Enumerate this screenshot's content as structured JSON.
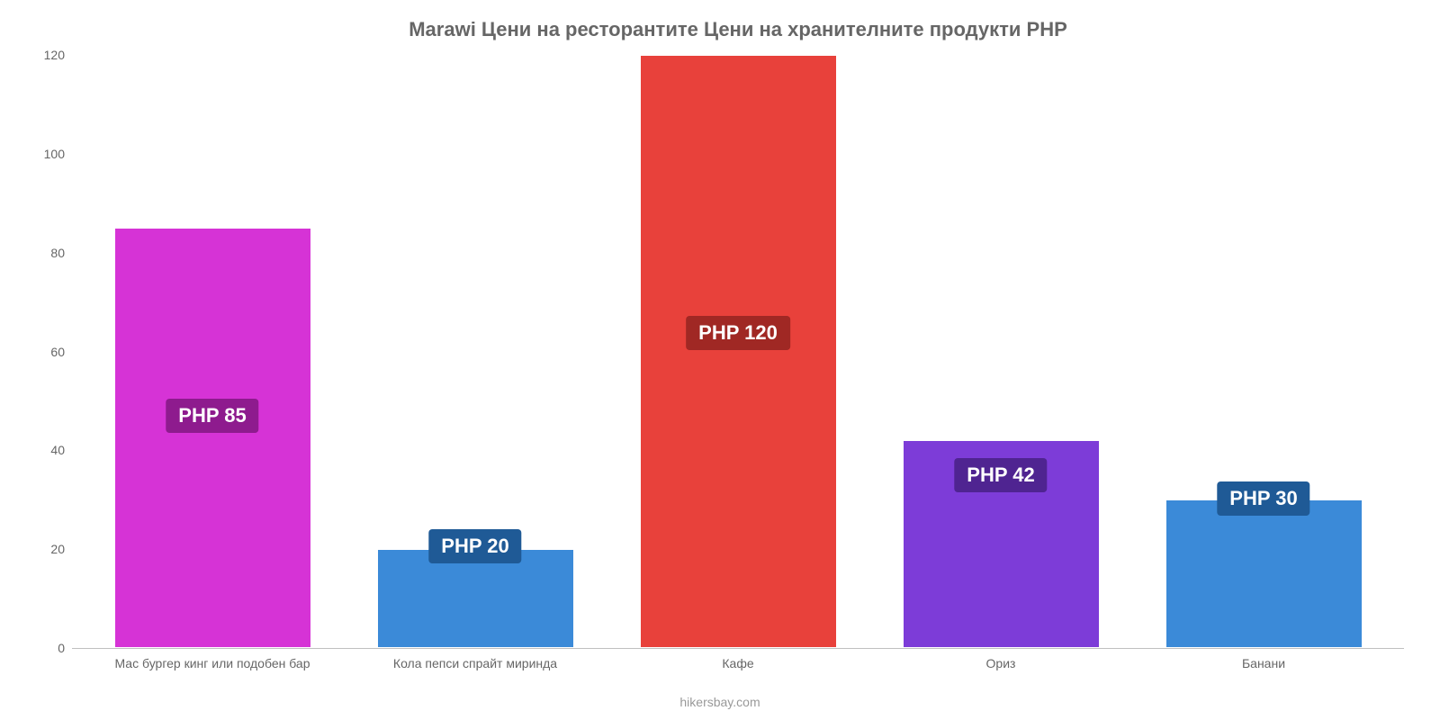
{
  "chart": {
    "type": "bar",
    "title": "Marawi Цени на ресторантите Цени на хранителните продукти PHP",
    "title_fontsize": 22,
    "title_color": "#666666",
    "background_color": "#ffffff",
    "ylim_min": 0,
    "ylim_max": 120,
    "ytick_step": 20,
    "yticks": [
      0,
      20,
      40,
      60,
      80,
      100,
      120
    ],
    "grid_color": "#c0c0c0",
    "axis_label_color": "#666666",
    "axis_label_fontsize": 14,
    "bar_width_ratio": 0.75,
    "value_label_fontsize": 22,
    "currency_prefix": "PHP ",
    "categories": [
      {
        "label": "Мас бургер кинг или подобен бар",
        "value": 85,
        "value_label": "PHP 85",
        "bar_color": "#d633d6",
        "badge_color": "#8e1b8e",
        "badge_position_from_top_pct": 58
      },
      {
        "label": "Кола пепси спрайт миринда",
        "value": 20,
        "value_label": "PHP 20",
        "bar_color": "#3b8ad8",
        "badge_color": "#1f5a96",
        "badge_position_from_top_pct": 80
      },
      {
        "label": "Кафе",
        "value": 120,
        "value_label": "PHP 120",
        "bar_color": "#e8413b",
        "badge_color": "#a02824",
        "badge_position_from_top_pct": 44
      },
      {
        "label": "Ориз",
        "value": 42,
        "value_label": "PHP 42",
        "bar_color": "#7d3cd8",
        "badge_color": "#4f2491",
        "badge_position_from_top_pct": 68
      },
      {
        "label": "Банани",
        "value": 30,
        "value_label": "PHP 30",
        "bar_color": "#3b8ad8",
        "badge_color": "#1f5a96",
        "badge_position_from_top_pct": 72
      }
    ],
    "attribution": "hikersbay.com"
  }
}
